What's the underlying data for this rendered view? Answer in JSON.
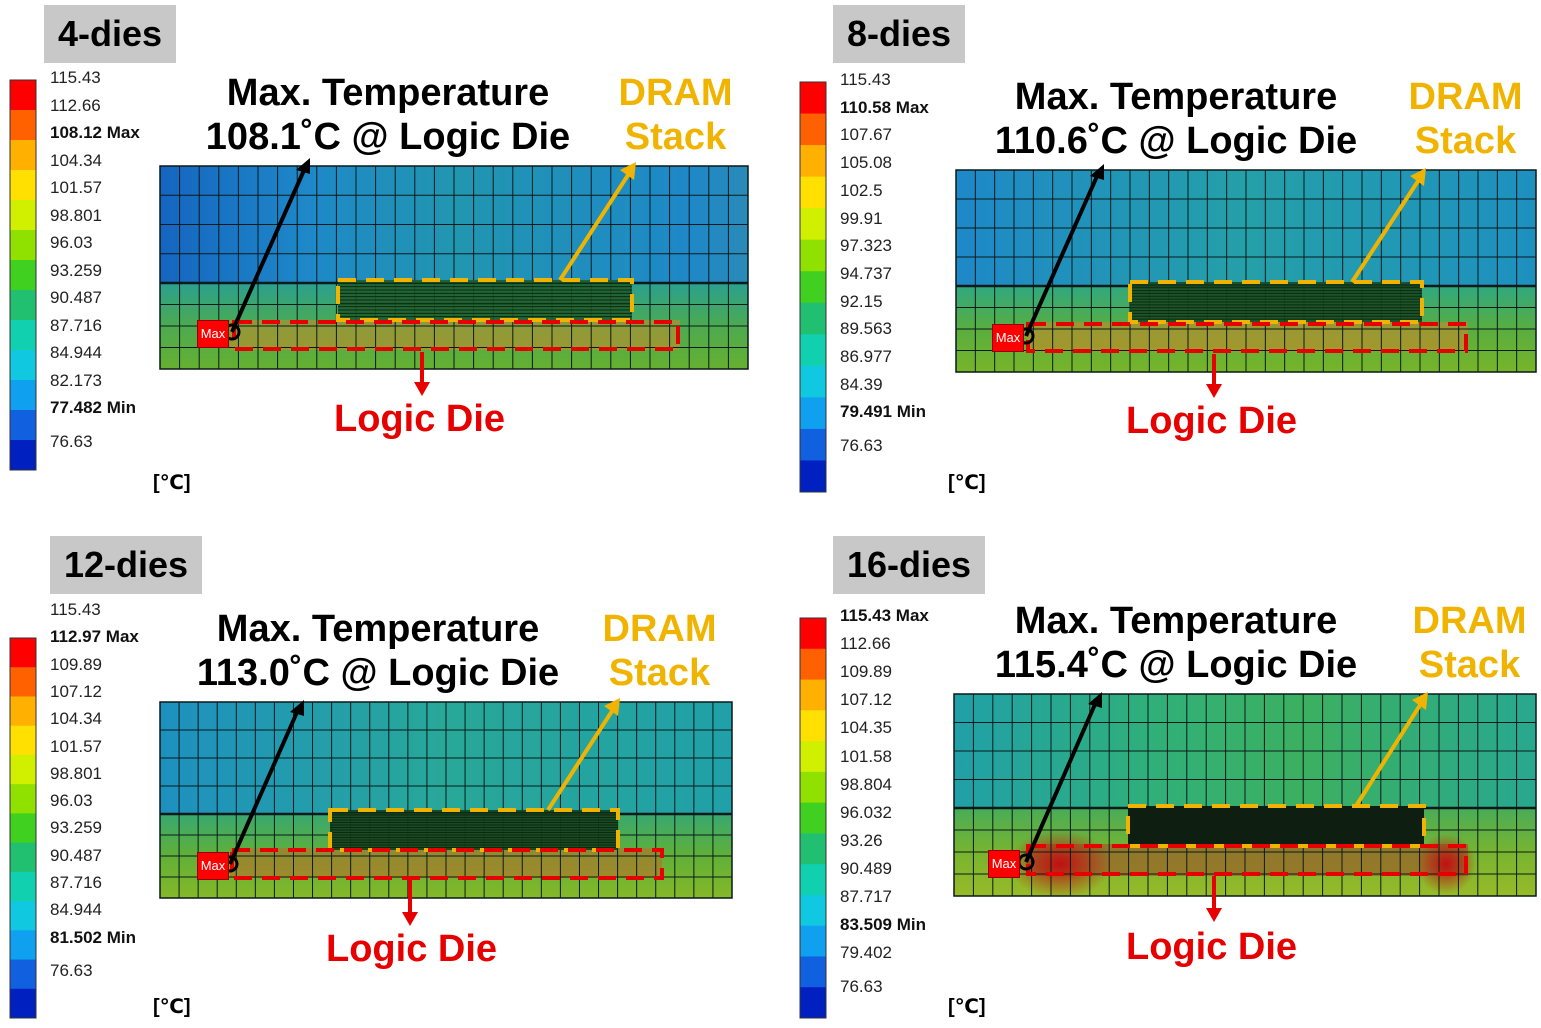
{
  "panels": [
    {
      "title": "4-dies",
      "legend_ticks": [
        "115.43",
        "112.66",
        "108.12 Max",
        "104.34",
        "101.57",
        "98.801",
        "96.03",
        "93.259",
        "90.487",
        "87.716",
        "84.944",
        "82.173",
        "77.482 Min",
        "76.63"
      ],
      "max_temp_label": "Max. Temperature",
      "max_temp_value": "108.1˚C @ Logic Die",
      "dram_label_1": "DRAM",
      "dram_label_2": "Stack",
      "logic_label": "Logic Die",
      "unit": "[℃]",
      "max_tag": "Max",
      "max_temperature": 108.12,
      "min_temperature": 77.482
    },
    {
      "title": "8-dies",
      "legend_ticks": [
        "115.43",
        "110.58 Max",
        "107.67",
        "105.08",
        "102.5",
        "99.91",
        "97.323",
        "94.737",
        "92.15",
        "89.563",
        "86.977",
        "84.39",
        "79.491 Min",
        "76.63"
      ],
      "max_temp_label": "Max. Temperature",
      "max_temp_value": "110.6˚C @ Logic Die",
      "dram_label_1": "DRAM",
      "dram_label_2": "Stack",
      "logic_label": "Logic Die",
      "unit": "[℃]",
      "max_tag": "Max",
      "max_temperature": 110.58,
      "min_temperature": 79.491
    },
    {
      "title": "12-dies",
      "legend_ticks": [
        "115.43",
        "112.97 Max",
        "109.89",
        "107.12",
        "104.34",
        "101.57",
        "98.801",
        "96.03",
        "93.259",
        "90.487",
        "87.716",
        "84.944",
        "81.502 Min",
        "76.63"
      ],
      "max_temp_label": "Max. Temperature",
      "max_temp_value": "113.0˚C @ Logic Die",
      "dram_label_1": "DRAM",
      "dram_label_2": "Stack",
      "logic_label": "Logic Die",
      "unit": "[℃]",
      "max_tag": "Max",
      "max_temperature": 112.97,
      "min_temperature": 81.502
    },
    {
      "title": "16-dies",
      "legend_ticks": [
        "115.43 Max",
        "112.66",
        "109.89",
        "107.12",
        "104.35",
        "101.58",
        "98.804",
        "96.032",
        "93.26",
        "90.489",
        "87.717",
        "83.509 Min",
        "79.402",
        "76.63"
      ],
      "max_temp_label": "Max. Temperature",
      "max_temp_value": "115.4˚C @ Logic Die",
      "dram_label_1": "DRAM",
      "dram_label_2": "Stack",
      "logic_label": "Logic Die",
      "unit": "[℃]",
      "max_tag": "Max",
      "max_temperature": 115.43,
      "min_temperature": 83.509
    }
  ],
  "colors": {
    "dram_outline": "#f0b400",
    "logic_outline": "#e60000",
    "arrow_black": "#000000"
  }
}
